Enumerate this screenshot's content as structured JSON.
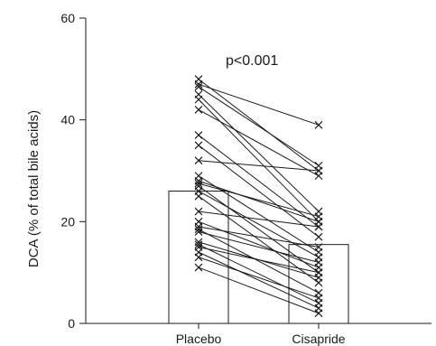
{
  "chart_data": {
    "type": "bar",
    "title": "",
    "annotation": "p<0.001",
    "ylabel": "DCA (% of total bile acids)",
    "xlabel": "",
    "ylim": [
      0,
      60
    ],
    "yticks": [
      0,
      20,
      40,
      60
    ],
    "categories": [
      "Placebo",
      "Cisapride"
    ],
    "values": [
      26,
      15.5
    ],
    "paired_points": [
      [
        48,
        30
      ],
      [
        47,
        39
      ],
      [
        46.5,
        31
      ],
      [
        45,
        22
      ],
      [
        44,
        20
      ],
      [
        42,
        29
      ],
      [
        37,
        19
      ],
      [
        35,
        17
      ],
      [
        32,
        30
      ],
      [
        29,
        14
      ],
      [
        28,
        20
      ],
      [
        27.5,
        21
      ],
      [
        27,
        10
      ],
      [
        26,
        13
      ],
      [
        25,
        8
      ],
      [
        22,
        19
      ],
      [
        20,
        11
      ],
      [
        19,
        15
      ],
      [
        18.5,
        6
      ],
      [
        18,
        12
      ],
      [
        16,
        9
      ],
      [
        15.5,
        4
      ],
      [
        15,
        10
      ],
      [
        14,
        3
      ],
      [
        13,
        5
      ],
      [
        11,
        2
      ]
    ]
  }
}
